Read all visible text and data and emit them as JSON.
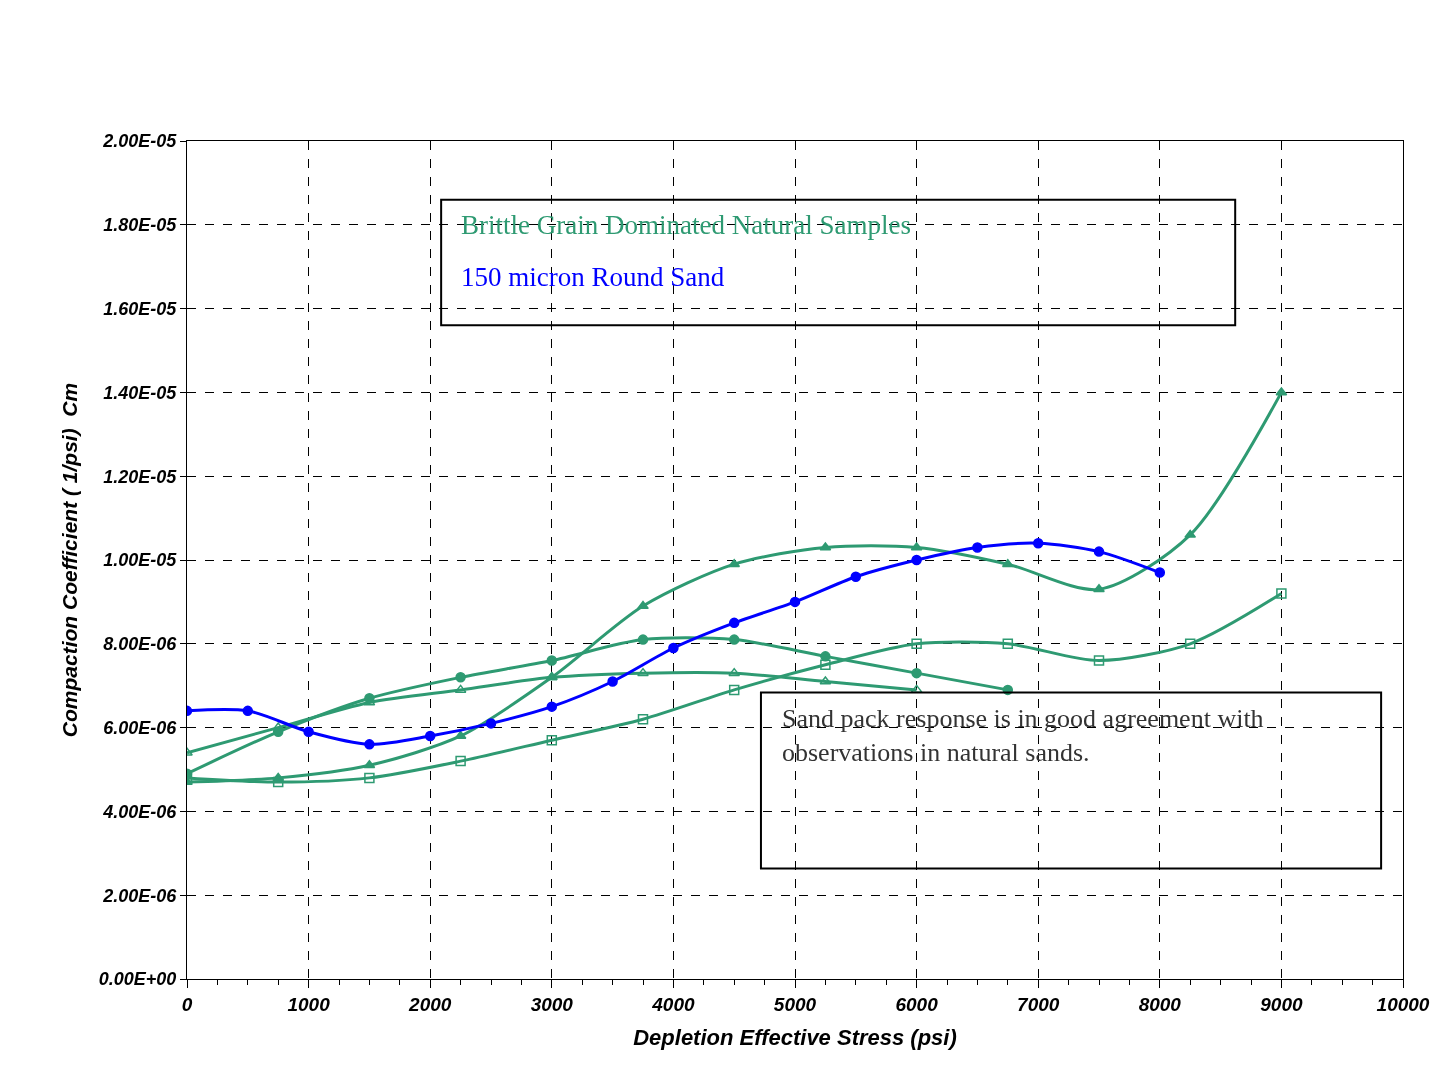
{
  "chart_data": {
    "type": "line",
    "xlabel": "Depletion Effective Stress (psi)",
    "ylabel": "Compaction Coefficient ( 1/psi)  Cm",
    "xlim": [
      0,
      10000
    ],
    "xticks": [
      0,
      1000,
      2000,
      3000,
      4000,
      5000,
      6000,
      7000,
      8000,
      9000,
      10000
    ],
    "ylim": [
      0,
      2e-05
    ],
    "yticks": [
      {
        "value": 0,
        "label": "0.00E+00"
      },
      {
        "value": 2e-06,
        "label": "2.00E-06"
      },
      {
        "value": 4e-06,
        "label": "4.00E-06"
      },
      {
        "value": 6e-06,
        "label": "6.00E-06"
      },
      {
        "value": 8e-06,
        "label": "8.00E-06"
      },
      {
        "value": 1e-05,
        "label": "1.00E-05"
      },
      {
        "value": 1.2e-05,
        "label": "1.20E-05"
      },
      {
        "value": 1.4e-05,
        "label": "1.40E-05"
      },
      {
        "value": 1.6e-05,
        "label": "1.60E-05"
      },
      {
        "value": 1.8e-05,
        "label": "1.80E-05"
      },
      {
        "value": 2e-05,
        "label": "2.00E-05"
      }
    ],
    "grid": true,
    "legend": "top",
    "line_style": "solid",
    "series": [
      {
        "name": "Brittle Grain Dominated Natural Samples",
        "color": "#2e9a72",
        "marker": "triangle",
        "x": [
          0,
          750,
          1500,
          2250,
          3000,
          3750,
          4500,
          5250,
          6000,
          6750,
          7500,
          8250,
          9000
        ],
        "values": [
          4.7e-06,
          4.8e-06,
          5.1e-06,
          5.8e-06,
          7.2e-06,
          8.9e-06,
          9.9e-06,
          1.03e-05,
          1.03e-05,
          9.9e-06,
          9.3e-06,
          1.06e-05,
          1.4e-05
        ]
      },
      {
        "color": "#2e9a72",
        "marker": "circle",
        "x": [
          0,
          750,
          1500,
          2250,
          3000,
          3750,
          4500,
          5250,
          6000,
          6750
        ],
        "values": [
          4.9e-06,
          5.9e-06,
          6.7e-06,
          7.2e-06,
          7.6e-06,
          8.1e-06,
          8.1e-06,
          7.7e-06,
          7.3e-06,
          6.9e-06
        ]
      },
      {
        "color": "#2e9a72",
        "marker": "triangle-open",
        "x": [
          0,
          750,
          1500,
          2250,
          3000,
          3750,
          4500,
          5250,
          6000
        ],
        "values": [
          5.4e-06,
          6e-06,
          6.6e-06,
          6.9e-06,
          7.2e-06,
          7.3e-06,
          7.3e-06,
          7.1e-06,
          6.9e-06
        ]
      },
      {
        "color": "#2e9a72",
        "marker": "square-open",
        "x": [
          0,
          750,
          1500,
          2250,
          3000,
          3750,
          4500,
          5250,
          6000,
          6750,
          7500,
          8250,
          9000
        ],
        "values": [
          4.8e-06,
          4.7e-06,
          4.8e-06,
          5.2e-06,
          5.7e-06,
          6.2e-06,
          6.9e-06,
          7.5e-06,
          8e-06,
          8e-06,
          7.6e-06,
          8e-06,
          9.2e-06
        ]
      },
      {
        "name": "150 micron Round Sand",
        "color": "#0000ff",
        "marker": "circle",
        "x": [
          0,
          500,
          1000,
          1500,
          2000,
          2500,
          3000,
          3500,
          4000,
          4500,
          5000,
          5500,
          6000,
          6500,
          7000,
          7500,
          8000
        ],
        "values": [
          6.4e-06,
          6.4e-06,
          5.9e-06,
          5.6e-06,
          5.8e-06,
          6.1e-06,
          6.5e-06,
          7.1e-06,
          7.9e-06,
          8.5e-06,
          9e-06,
          9.6e-06,
          1e-05,
          1.03e-05,
          1.04e-05,
          1.02e-05,
          9.7e-06
        ]
      }
    ],
    "annotations": [
      "Sand pack response is in good agreement with observations in natural sands."
    ]
  }
}
